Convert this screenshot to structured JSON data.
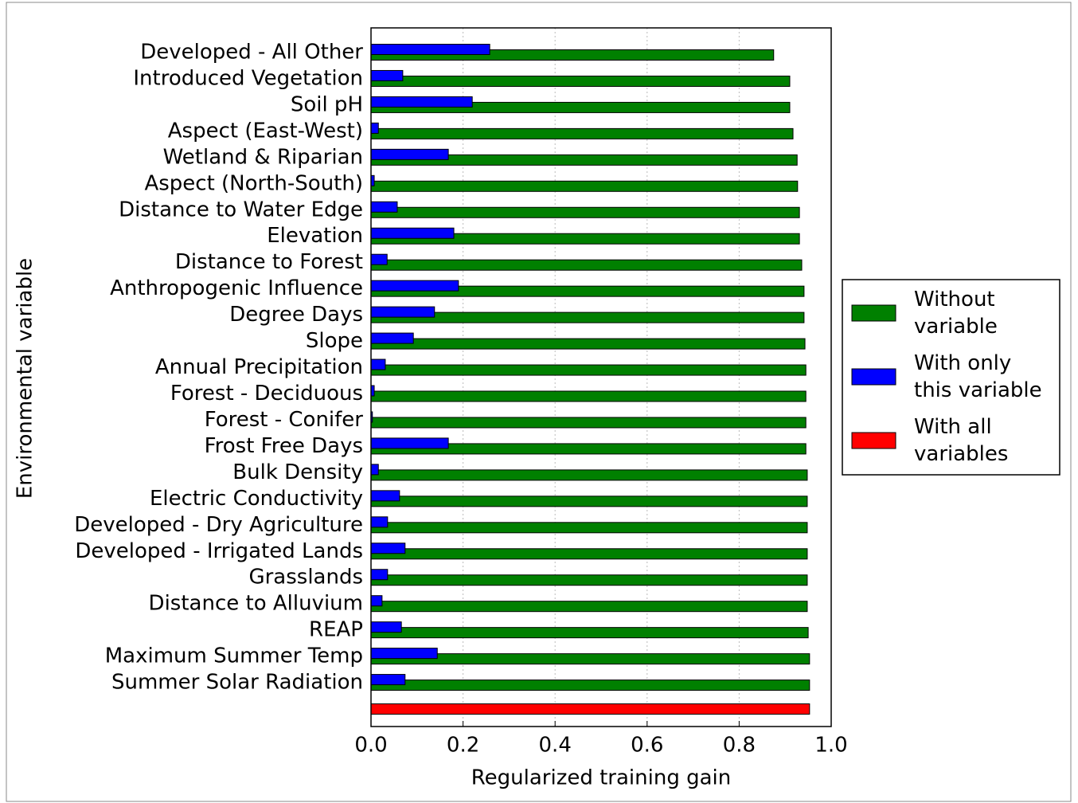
{
  "chart_data": {
    "type": "bar",
    "orientation": "horizontal",
    "x_label": "Regularized training gain",
    "y_label": "Environmental variable",
    "categories": [
      "Developed - All Other",
      "Introduced Vegetation",
      "Soil pH",
      "Aspect (East-West)",
      "Wetland & Riparian",
      "Aspect (North-South)",
      "Distance to Water Edge",
      "Elevation",
      "Distance to Forest",
      "Anthropogenic Influence",
      "Degree Days",
      "Slope",
      "Annual Precipitation",
      "Forest - Deciduous",
      "Forest - Conifer",
      "Frost Free Days",
      "Bulk Density",
      "Electric Conductivity",
      "Developed - Dry Agriculture",
      "Developed - Irrigated Lands",
      "Grasslands",
      "Distance to Alluvium",
      "REAP",
      "Maximum Summer Temp",
      "Summer Solar Radiation",
      null
    ],
    "series": [
      {
        "name": "Without\nvariable",
        "color": "#008000",
        "values": [
          0.875,
          0.91,
          0.91,
          0.917,
          0.926,
          0.927,
          0.931,
          0.931,
          0.936,
          0.941,
          0.941,
          0.943,
          0.945,
          0.945,
          0.945,
          0.945,
          0.948,
          0.948,
          0.948,
          0.948,
          0.948,
          0.948,
          0.95,
          0.953,
          0.953,
          null
        ]
      },
      {
        "name": "With only\nthis variable",
        "color": "#0000ff",
        "values": [
          0.258,
          0.069,
          0.22,
          0.016,
          0.168,
          0.007,
          0.057,
          0.18,
          0.035,
          0.19,
          0.138,
          0.092,
          0.031,
          0.007,
          0.003,
          0.168,
          0.016,
          0.062,
          0.036,
          0.074,
          0.036,
          0.024,
          0.066,
          0.144,
          0.074,
          null
        ]
      },
      {
        "name": "With all\nvariables",
        "color": "#ff0000",
        "values": [
          null,
          null,
          null,
          null,
          null,
          null,
          null,
          null,
          null,
          null,
          null,
          null,
          null,
          null,
          null,
          null,
          null,
          null,
          null,
          null,
          null,
          null,
          null,
          null,
          null,
          0.953
        ]
      }
    ],
    "xlim": [
      0,
      1
    ],
    "xticks": [
      {
        "value": 0,
        "label": "0.0"
      },
      {
        "value": 0.2,
        "label": "0.2"
      },
      {
        "value": 0.4,
        "label": "0.4"
      },
      {
        "value": 0.6,
        "label": "0.6"
      },
      {
        "value": 0.8,
        "label": "0.8"
      },
      {
        "value": 1,
        "label": "1.0"
      }
    ],
    "grid": true,
    "legend_position": "right"
  }
}
